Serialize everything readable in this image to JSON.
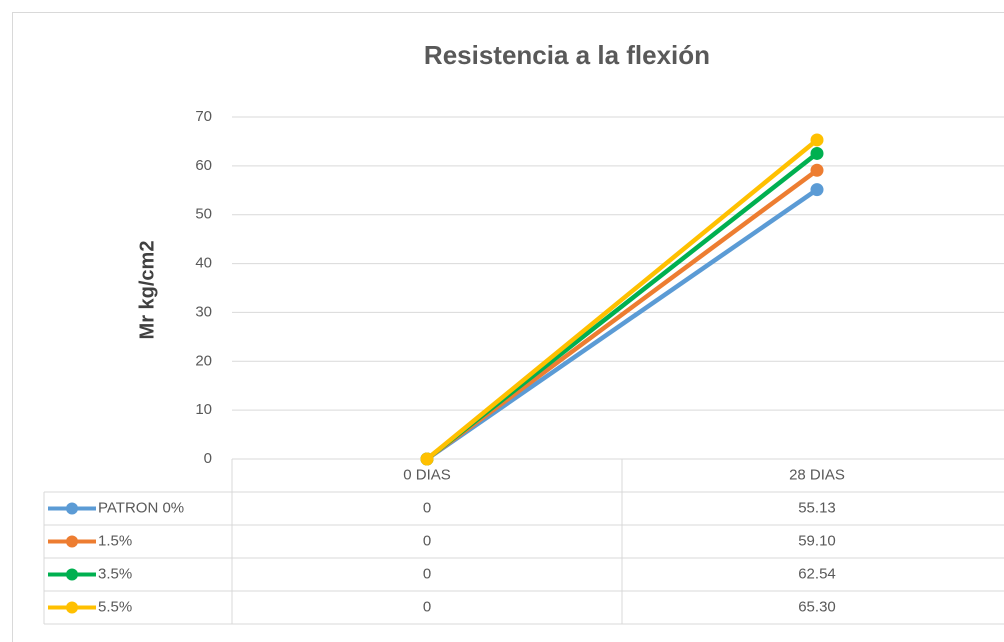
{
  "chart_data": {
    "type": "line",
    "title": "Resistencia a la flexión",
    "y_label": "Mr kg/cm2",
    "categories": [
      "0 DIAS",
      "28 DIAS"
    ],
    "series": [
      {
        "name": "PATRON 0%",
        "color": "#5b9bd5",
        "values": [
          0,
          55.13
        ],
        "value_labels": [
          "0",
          "55.13"
        ]
      },
      {
        "name": "1.5%",
        "color": "#ed7d31",
        "values": [
          0,
          59.1
        ],
        "value_labels": [
          "0",
          "59.10"
        ]
      },
      {
        "name": "3.5%",
        "color": "#00b050",
        "values": [
          0,
          62.54
        ],
        "value_labels": [
          "0",
          "62.54"
        ]
      },
      {
        "name": "5.5%",
        "color": "#ffc000",
        "values": [
          0,
          65.3
        ],
        "value_labels": [
          "0",
          "65.30"
        ]
      }
    ],
    "ylim": [
      0,
      70
    ],
    "yticks": [
      0,
      10,
      20,
      30,
      40,
      50,
      60,
      70
    ],
    "grid": true
  }
}
